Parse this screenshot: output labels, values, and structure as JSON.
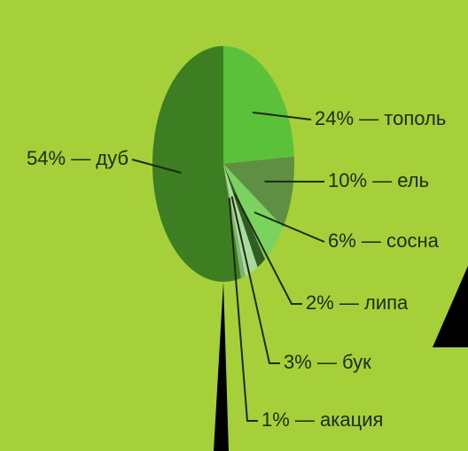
{
  "chart_data": {
    "type": "pie",
    "values": [
      24,
      10,
      6,
      2,
      3,
      1,
      54
    ],
    "value_labels": [
      "24% — тополь",
      "10% — ель",
      "6% — сосна",
      "2% — липа",
      "3% — бук",
      "1% — акация",
      "54% — дуб"
    ],
    "colors": [
      "#5cc13a",
      "#5f8f43",
      "#7ad35f",
      "#2f5d22",
      "#a9dba0",
      "#7fb36d",
      "#3d7e22"
    ]
  }
}
